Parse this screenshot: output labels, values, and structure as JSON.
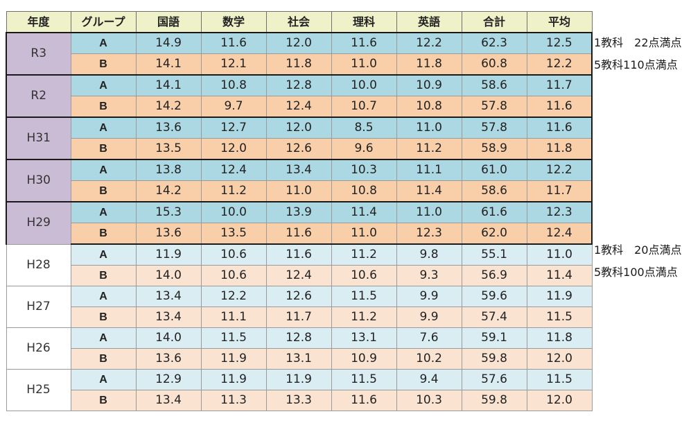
{
  "headers": [
    "年度",
    "グループ",
    "国語",
    "数学",
    "社会",
    "理科",
    "英語",
    "合計",
    "平均"
  ],
  "rows": [
    {
      "year": "R3",
      "style": "recent",
      "groups": [
        {
          "group": "A",
          "values": [
            "14.9",
            "11.6",
            "12.0",
            "11.6",
            "12.2",
            "62.3",
            "12.5"
          ]
        },
        {
          "group": "B",
          "values": [
            "14.1",
            "12.1",
            "11.8",
            "11.0",
            "11.8",
            "60.8",
            "12.2"
          ]
        }
      ]
    },
    {
      "year": "R2",
      "style": "recent",
      "groups": [
        {
          "group": "A",
          "values": [
            "14.1",
            "10.8",
            "12.8",
            "10.0",
            "10.9",
            "58.6",
            "11.7"
          ]
        },
        {
          "group": "B",
          "values": [
            "14.2",
            "9.7",
            "12.4",
            "10.7",
            "10.8",
            "57.8",
            "11.6"
          ]
        }
      ]
    },
    {
      "year": "H31",
      "style": "recent",
      "groups": [
        {
          "group": "A",
          "values": [
            "13.6",
            "12.7",
            "12.0",
            "8.5",
            "11.0",
            "57.8",
            "11.6"
          ]
        },
        {
          "group": "B",
          "values": [
            "13.5",
            "12.0",
            "12.6",
            "9.6",
            "11.2",
            "58.9",
            "11.8"
          ]
        }
      ]
    },
    {
      "year": "H30",
      "style": "recent",
      "groups": [
        {
          "group": "A",
          "values": [
            "13.8",
            "12.4",
            "13.4",
            "10.3",
            "11.1",
            "61.0",
            "12.2"
          ]
        },
        {
          "group": "B",
          "values": [
            "14.2",
            "11.2",
            "11.0",
            "10.8",
            "11.4",
            "58.6",
            "11.7"
          ]
        }
      ]
    },
    {
      "year": "H29",
      "style": "recent",
      "groups": [
        {
          "group": "A",
          "values": [
            "15.3",
            "10.0",
            "13.9",
            "11.4",
            "11.0",
            "61.6",
            "12.3"
          ]
        },
        {
          "group": "B",
          "values": [
            "13.6",
            "13.5",
            "11.6",
            "11.0",
            "12.3",
            "62.0",
            "12.4"
          ]
        }
      ]
    },
    {
      "year": "H28",
      "style": "older",
      "groups": [
        {
          "group": "A",
          "values": [
            "11.9",
            "10.6",
            "11.6",
            "11.2",
            "9.8",
            "55.1",
            "11.0"
          ]
        },
        {
          "group": "B",
          "values": [
            "14.0",
            "10.6",
            "12.4",
            "10.6",
            "9.3",
            "56.9",
            "11.4"
          ]
        }
      ]
    },
    {
      "year": "H27",
      "style": "older",
      "groups": [
        {
          "group": "A",
          "values": [
            "13.4",
            "12.2",
            "12.6",
            "11.5",
            "9.9",
            "59.6",
            "11.9"
          ]
        },
        {
          "group": "B",
          "values": [
            "13.4",
            "11.1",
            "11.7",
            "11.2",
            "9.9",
            "57.4",
            "11.5"
          ]
        }
      ]
    },
    {
      "year": "H26",
      "style": "older",
      "groups": [
        {
          "group": "A",
          "values": [
            "14.0",
            "11.5",
            "12.8",
            "13.1",
            "7.6",
            "59.1",
            "11.8"
          ]
        },
        {
          "group": "B",
          "values": [
            "13.6",
            "11.9",
            "13.1",
            "10.9",
            "10.2",
            "59.8",
            "12.0"
          ]
        }
      ]
    },
    {
      "year": "H25",
      "style": "older",
      "groups": [
        {
          "group": "A",
          "values": [
            "12.9",
            "11.9",
            "11.9",
            "11.5",
            "9.4",
            "57.6",
            "11.5"
          ]
        },
        {
          "group": "B",
          "values": [
            "13.4",
            "11.3",
            "13.3",
            "11.6",
            "10.3",
            "59.8",
            "12.0"
          ]
        }
      ]
    }
  ],
  "notes": {
    "recent_line1": "1教科　22点満点",
    "recent_line2": "5教科110点満点",
    "older_line1": "1教科　20点満点",
    "older_line2": "5教科100点満点"
  },
  "colors": {
    "header_bg": "#eff2c9",
    "recent_year_bg": "#cbbcd6",
    "recent_a_bg": "#acd8e3",
    "recent_b_bg": "#f9cfa9",
    "older_a_bg": "#daedf3",
    "older_b_bg": "#fbe3d2"
  }
}
